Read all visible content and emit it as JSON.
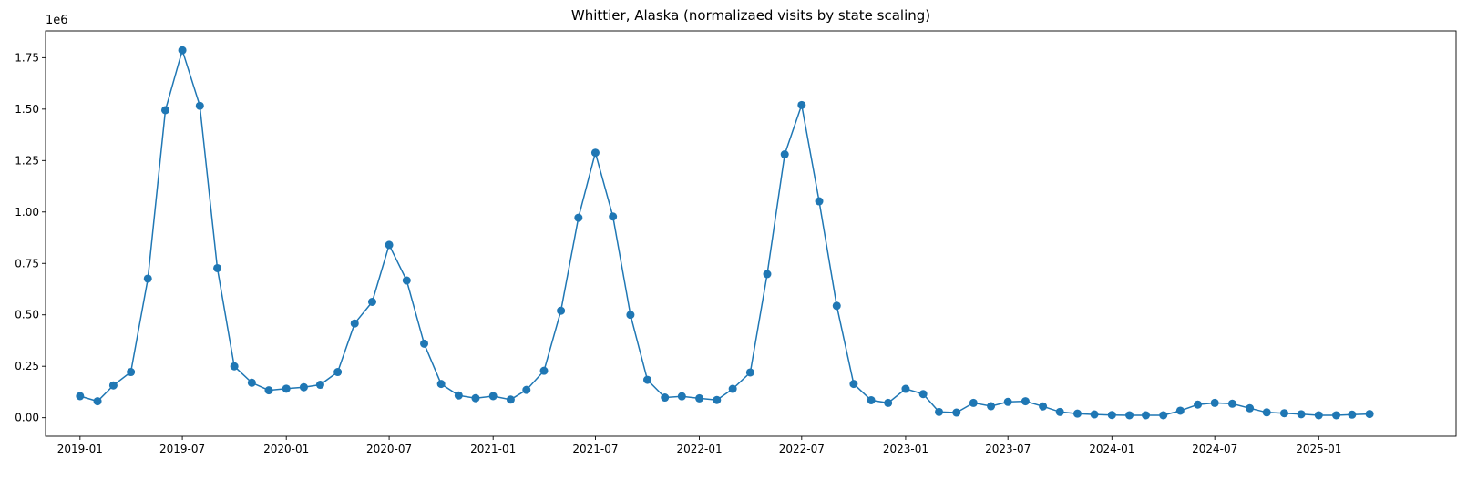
{
  "chart_data": {
    "type": "line",
    "title": "Whittier, Alaska (normalizaed visits by state scaling)",
    "xlabel": "",
    "ylabel": "",
    "y_offset_label": "1e6",
    "ylim": [
      -0.09,
      1.88
    ],
    "y_ticks": [
      0.0,
      0.25,
      0.5,
      0.75,
      1.0,
      1.25,
      1.5,
      1.75
    ],
    "y_tick_labels": [
      "0.00",
      "0.25",
      "0.50",
      "0.75",
      "1.00",
      "1.25",
      "1.50",
      "1.75"
    ],
    "x_ticks": [
      "2019-01",
      "2019-07",
      "2020-01",
      "2020-07",
      "2021-01",
      "2021-07",
      "2022-01",
      "2022-07",
      "2023-01",
      "2023-07",
      "2024-01",
      "2024-07",
      "2025-01"
    ],
    "grid": false,
    "marker": "circle",
    "color": "#1f77b4",
    "series": [
      {
        "x": [
          "2019-01",
          "2019-02",
          "2019-03",
          "2019-04",
          "2019-05",
          "2019-06",
          "2019-07",
          "2019-08",
          "2019-09",
          "2019-10",
          "2019-11",
          "2019-12",
          "2020-01",
          "2020-02",
          "2020-03",
          "2020-04",
          "2020-05",
          "2020-06",
          "2020-07",
          "2020-08",
          "2020-09",
          "2020-10",
          "2020-11",
          "2020-12",
          "2021-01",
          "2021-02",
          "2021-03",
          "2021-04",
          "2021-05",
          "2021-06",
          "2021-07",
          "2021-08",
          "2021-09",
          "2021-10",
          "2021-11",
          "2021-12",
          "2022-01",
          "2022-02",
          "2022-03",
          "2022-04",
          "2022-05",
          "2022-06",
          "2022-07",
          "2022-08",
          "2022-09",
          "2022-10",
          "2022-11",
          "2022-12",
          "2023-01",
          "2023-02",
          "2023-03",
          "2023-04",
          "2023-05",
          "2023-06",
          "2023-07",
          "2023-08",
          "2023-09",
          "2023-10",
          "2023-11",
          "2023-12",
          "2024-01",
          "2024-02",
          "2024-03",
          "2024-04",
          "2024-05",
          "2024-06",
          "2024-07",
          "2024-08",
          "2024-09",
          "2024-10",
          "2024-11",
          "2024-12",
          "2025-01",
          "2025-02",
          "2025-03",
          "2025-04"
        ],
        "values": [
          0.105,
          0.08,
          0.157,
          0.222,
          0.676,
          1.495,
          1.786,
          1.516,
          0.727,
          0.25,
          0.17,
          0.133,
          0.141,
          0.148,
          0.16,
          0.222,
          0.458,
          0.563,
          0.84,
          0.667,
          0.36,
          0.164,
          0.108,
          0.095,
          0.105,
          0.088,
          0.135,
          0.228,
          0.52,
          0.972,
          1.288,
          0.978,
          0.5,
          0.184,
          0.098,
          0.104,
          0.094,
          0.086,
          0.14,
          0.22,
          0.698,
          1.28,
          1.52,
          1.052,
          0.544,
          0.164,
          0.085,
          0.072,
          0.14,
          0.115,
          0.028,
          0.025,
          0.072,
          0.056,
          0.077,
          0.08,
          0.055,
          0.028,
          0.02,
          0.016,
          0.013,
          0.012,
          0.012,
          0.012,
          0.034,
          0.064,
          0.072,
          0.068,
          0.046,
          0.026,
          0.022,
          0.017,
          0.012,
          0.012,
          0.015,
          0.018
        ]
      }
    ]
  }
}
